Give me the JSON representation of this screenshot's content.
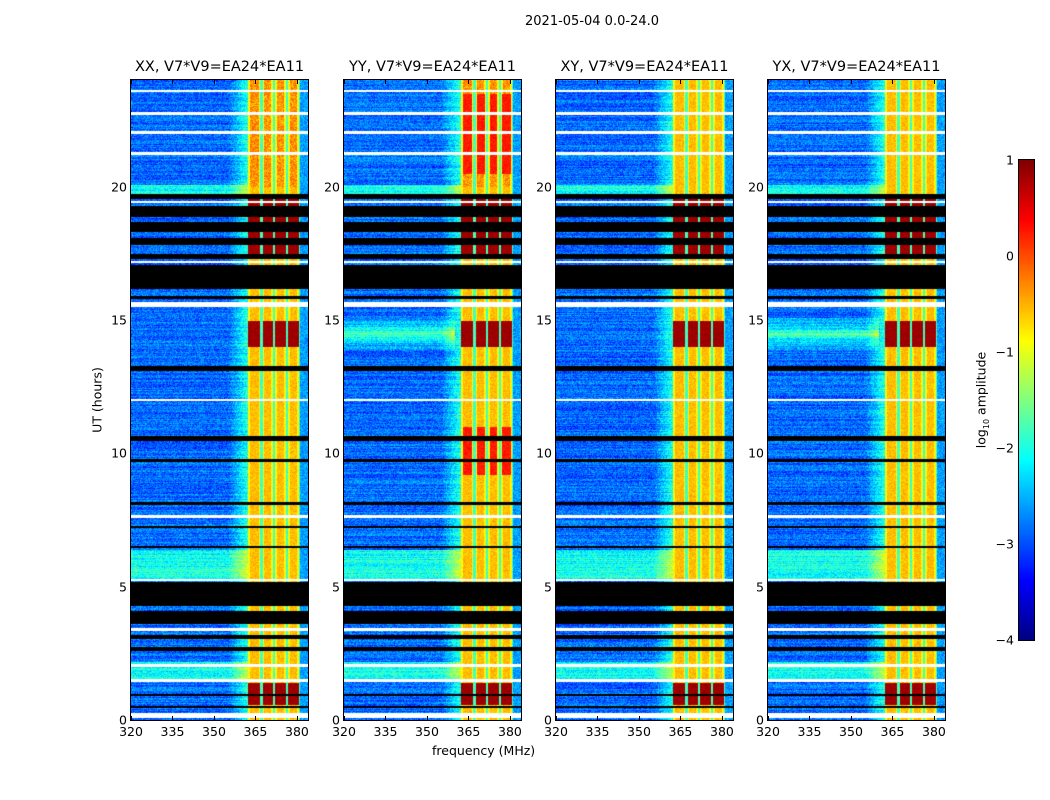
{
  "figure_title": "2021-05-04 0.0-24.0",
  "chart_data": [
    {
      "type": "heatmap",
      "title": "XX, V7*V9=EA24*EA11",
      "pol": "XX"
    },
    {
      "type": "heatmap",
      "title": "YY, V7*V9=EA24*EA11",
      "pol": "YY"
    },
    {
      "type": "heatmap",
      "title": "XY, V7*V9=EA24*EA11",
      "pol": "XY"
    },
    {
      "type": "heatmap",
      "title": "YX, V7*V9=EA24*EA11",
      "pol": "YX"
    }
  ],
  "axes": {
    "xlabel": "frequency (MHz)",
    "ylabel": "UT (hours)",
    "xlim": [
      320,
      384
    ],
    "ylim": [
      0,
      24
    ],
    "xticks": [
      "320",
      "335",
      "350",
      "365",
      "380"
    ],
    "xtick_values": [
      320,
      335,
      350,
      365,
      380
    ],
    "yticks": [
      "0",
      "5",
      "10",
      "15",
      "20"
    ],
    "ytick_values": [
      0,
      5,
      10,
      15,
      20
    ]
  },
  "colorbar": {
    "label_main": "log",
    "label_sub": "10",
    "label_rest": " amplitude",
    "range": [
      -4,
      1
    ],
    "colormap": "jet",
    "ticks": [
      "1",
      "0",
      "−1",
      "−2",
      "−3",
      "−4"
    ],
    "tick_values": [
      1,
      0,
      -1,
      -2,
      -3,
      -4
    ]
  },
  "structure": {
    "rfi_band_mhz": [
      362,
      381
    ],
    "flagged_hours": [
      [
        0.45,
        0.55
      ],
      [
        0.9,
        1.0
      ],
      [
        2.6,
        2.75
      ],
      [
        3.05,
        3.2
      ],
      [
        3.6,
        4.1
      ],
      [
        4.3,
        5.2
      ],
      [
        6.45,
        6.55
      ],
      [
        7.2,
        7.3
      ],
      [
        8.1,
        8.2
      ],
      [
        9.7,
        9.8
      ],
      [
        10.5,
        10.65
      ],
      [
        13.1,
        13.3
      ],
      [
        15.8,
        15.9
      ],
      [
        16.2,
        17.1
      ],
      [
        17.3,
        17.5
      ],
      [
        17.85,
        18.1
      ],
      [
        18.3,
        18.7
      ],
      [
        18.9,
        19.3
      ],
      [
        19.55,
        19.75
      ]
    ],
    "blank_hours": [
      [
        0.1,
        0.3
      ],
      [
        1.45,
        1.55
      ],
      [
        2.0,
        2.1
      ],
      [
        3.35,
        3.45
      ],
      [
        5.25,
        5.3
      ],
      [
        7.6,
        7.7
      ],
      [
        12.0,
        12.05
      ],
      [
        15.5,
        15.7
      ],
      [
        17.15,
        17.25
      ],
      [
        19.4,
        19.5
      ],
      [
        21.2,
        21.3
      ],
      [
        22.0,
        22.1
      ],
      [
        22.7,
        22.8
      ],
      [
        23.55,
        23.65
      ]
    ]
  }
}
